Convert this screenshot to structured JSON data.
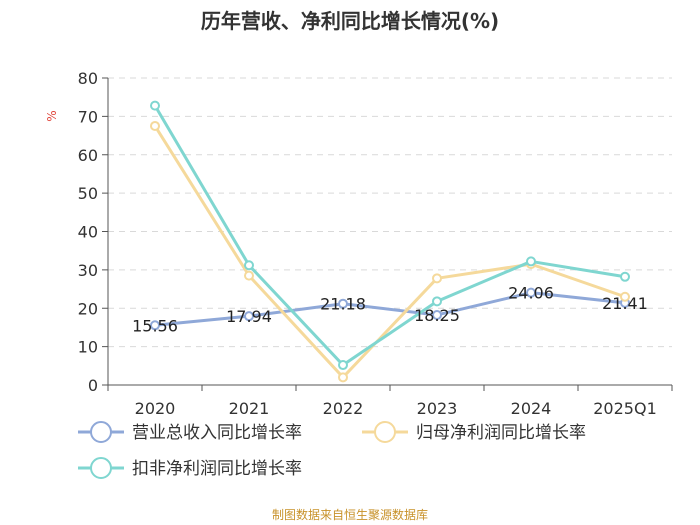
{
  "chart_data": {
    "type": "line",
    "title": "历年营收、净利同比增长情况(%)",
    "ylabel": "%",
    "xlabel": "",
    "categories": [
      "2020",
      "2021",
      "2022",
      "2023",
      "2024",
      "2025Q1"
    ],
    "ylim": [
      0,
      80
    ],
    "yticks": [
      0,
      10,
      20,
      30,
      40,
      50,
      60,
      70,
      80
    ],
    "grid": true,
    "legend_position": "bottom-left",
    "series": [
      {
        "name": "营业总收入同比增长率",
        "color": "#8fa8d8",
        "values": [
          15.56,
          17.94,
          21.18,
          18.25,
          24.06,
          21.41
        ],
        "data_labels": [
          "15.56",
          "17.94",
          "21.18",
          "18.25",
          "24.06",
          "21.41"
        ]
      },
      {
        "name": "归母净利润同比增长率",
        "color": "#f5d99b",
        "values": [
          67.5,
          28.5,
          2.0,
          27.8,
          31.5,
          23.0
        ]
      },
      {
        "name": "扣非净利润同比增长率",
        "color": "#7fd6d0",
        "values": [
          72.8,
          31.2,
          5.2,
          21.8,
          32.2,
          28.2
        ]
      }
    ]
  },
  "source": "制图数据来自恒生聚源数据库"
}
